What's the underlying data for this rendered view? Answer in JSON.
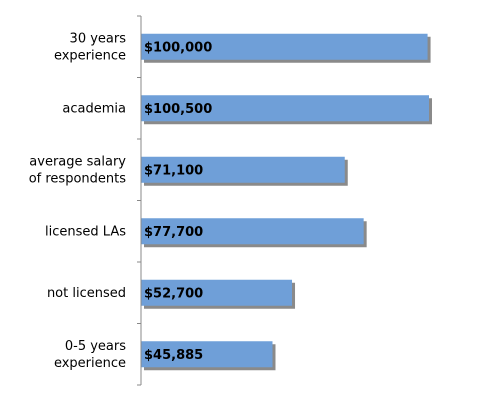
{
  "chart_data": {
    "type": "bar",
    "orientation": "horizontal",
    "categories": [
      "30 years\nexperience",
      "academia",
      "average salary\nof respondents",
      "licensed LAs",
      "not licensed",
      "0-5 years\nexperience"
    ],
    "values": [
      100000,
      100500,
      71100,
      77700,
      52700,
      45885
    ],
    "value_labels": [
      "$100,000",
      "$100,500",
      "$71,100",
      "$77,700",
      "$52,700",
      "$45,885"
    ],
    "color": "#6f9fd8"
  }
}
